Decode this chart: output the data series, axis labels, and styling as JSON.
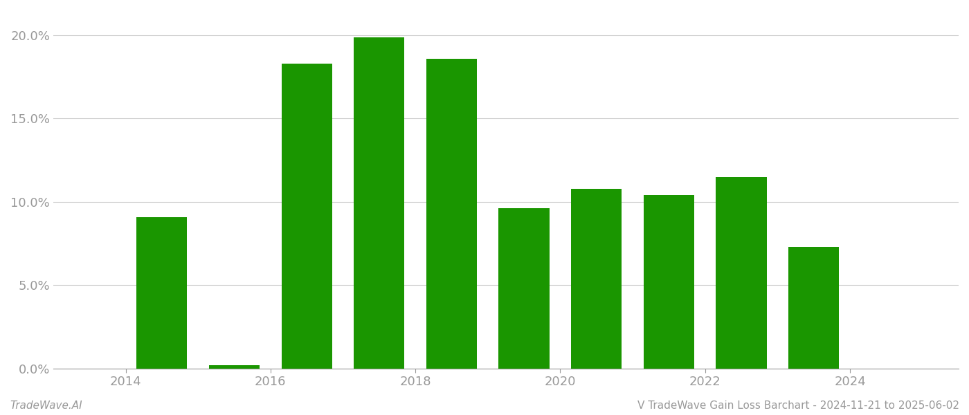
{
  "years": [
    2014,
    2015,
    2016,
    2017,
    2018,
    2019,
    2020,
    2021,
    2022,
    2023
  ],
  "values": [
    0.091,
    0.002,
    0.183,
    0.199,
    0.186,
    0.096,
    0.108,
    0.104,
    0.115,
    0.073
  ],
  "bar_color": "#1a9600",
  "background_color": "#ffffff",
  "yticks": [
    0.0,
    0.05,
    0.1,
    0.15,
    0.2
  ],
  "ylim": [
    0,
    0.215
  ],
  "xlim": [
    2013.0,
    2025.5
  ],
  "grid_color": "#cccccc",
  "axis_color": "#999999",
  "tick_color": "#999999",
  "title": "V TradeWave Gain Loss Barchart - 2024-11-21 to 2025-06-02",
  "watermark": "TradeWave.AI",
  "title_fontsize": 11,
  "watermark_fontsize": 11,
  "tick_fontsize": 13,
  "bar_width": 0.7,
  "xticks": [
    2014,
    2016,
    2018,
    2020,
    2022,
    2024
  ]
}
